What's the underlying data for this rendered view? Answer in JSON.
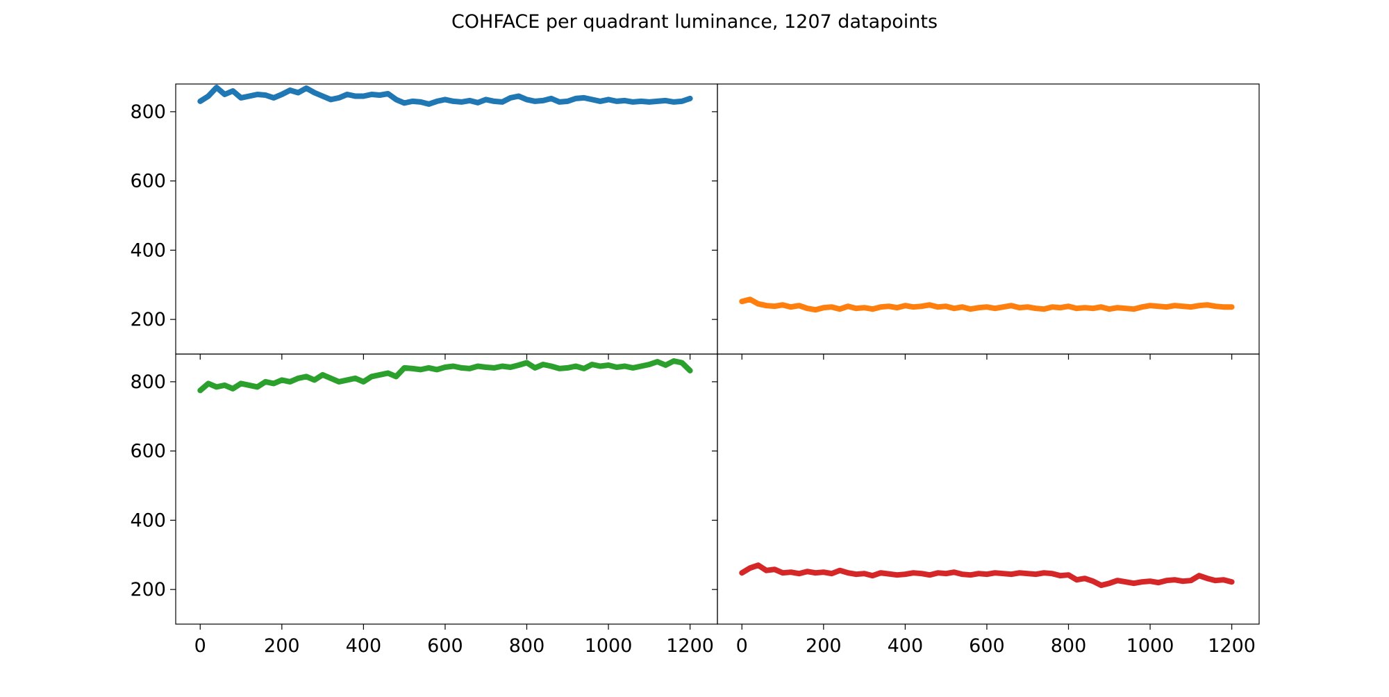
{
  "figure": {
    "title": "COHFACE per quadrant luminance, 1207 datapoints"
  },
  "chart_data": [
    {
      "type": "line",
      "panel": "top-left",
      "color": "#1f77b4",
      "xlim": [
        -60,
        1267
      ],
      "ylim": [
        100,
        880
      ],
      "xticks": [
        0,
        200,
        400,
        600,
        800,
        1000,
        1200
      ],
      "yticks": [
        200,
        400,
        600,
        800
      ],
      "show_xtick_labels": false,
      "show_ytick_labels": true,
      "x": [
        0,
        20,
        40,
        60,
        80,
        100,
        120,
        140,
        160,
        180,
        200,
        220,
        240,
        260,
        280,
        300,
        320,
        340,
        360,
        380,
        400,
        420,
        440,
        460,
        480,
        500,
        520,
        540,
        560,
        580,
        600,
        620,
        640,
        660,
        680,
        700,
        720,
        740,
        760,
        780,
        800,
        820,
        840,
        860,
        880,
        900,
        920,
        940,
        960,
        980,
        1000,
        1020,
        1040,
        1060,
        1080,
        1100,
        1120,
        1140,
        1160,
        1180,
        1200
      ],
      "values": [
        830,
        845,
        870,
        850,
        860,
        840,
        845,
        850,
        848,
        840,
        850,
        862,
        855,
        868,
        855,
        845,
        835,
        840,
        850,
        845,
        845,
        850,
        848,
        852,
        835,
        825,
        830,
        828,
        822,
        830,
        835,
        830,
        828,
        832,
        826,
        835,
        830,
        828,
        840,
        845,
        835,
        830,
        832,
        838,
        828,
        830,
        838,
        840,
        835,
        830,
        835,
        830,
        832,
        828,
        830,
        828,
        830,
        832,
        828,
        830,
        838
      ]
    },
    {
      "type": "line",
      "panel": "top-right",
      "color": "#ff7f0e",
      "xlim": [
        -60,
        1267
      ],
      "ylim": [
        100,
        880
      ],
      "xticks": [
        0,
        200,
        400,
        600,
        800,
        1000,
        1200
      ],
      "yticks": [
        200,
        400,
        600,
        800
      ],
      "show_xtick_labels": false,
      "show_ytick_labels": false,
      "x": [
        0,
        20,
        40,
        60,
        80,
        100,
        120,
        140,
        160,
        180,
        200,
        220,
        240,
        260,
        280,
        300,
        320,
        340,
        360,
        380,
        400,
        420,
        440,
        460,
        480,
        500,
        520,
        540,
        560,
        580,
        600,
        620,
        640,
        660,
        680,
        700,
        720,
        740,
        760,
        780,
        800,
        820,
        840,
        860,
        880,
        900,
        920,
        940,
        960,
        980,
        1000,
        1020,
        1040,
        1060,
        1080,
        1100,
        1120,
        1140,
        1160,
        1180,
        1200
      ],
      "values": [
        252,
        258,
        245,
        240,
        238,
        242,
        236,
        240,
        232,
        228,
        234,
        236,
        230,
        238,
        232,
        234,
        230,
        236,
        238,
        234,
        240,
        236,
        238,
        242,
        236,
        238,
        232,
        236,
        230,
        234,
        236,
        232,
        236,
        240,
        234,
        236,
        232,
        230,
        236,
        234,
        238,
        232,
        234,
        232,
        236,
        230,
        234,
        232,
        230,
        236,
        240,
        238,
        236,
        240,
        238,
        236,
        240,
        242,
        238,
        236,
        236
      ]
    },
    {
      "type": "line",
      "panel": "bottom-left",
      "color": "#2ca02c",
      "xlim": [
        -60,
        1267
      ],
      "ylim": [
        100,
        880
      ],
      "xticks": [
        0,
        200,
        400,
        600,
        800,
        1000,
        1200
      ],
      "yticks": [
        200,
        400,
        600,
        800
      ],
      "show_xtick_labels": true,
      "show_ytick_labels": true,
      "x": [
        0,
        20,
        40,
        60,
        80,
        100,
        120,
        140,
        160,
        180,
        200,
        220,
        240,
        260,
        280,
        300,
        320,
        340,
        360,
        380,
        400,
        420,
        440,
        460,
        480,
        500,
        520,
        540,
        560,
        580,
        600,
        620,
        640,
        660,
        680,
        700,
        720,
        740,
        760,
        780,
        800,
        820,
        840,
        860,
        880,
        900,
        920,
        940,
        960,
        980,
        1000,
        1020,
        1040,
        1060,
        1080,
        1100,
        1120,
        1140,
        1160,
        1180,
        1200
      ],
      "values": [
        775,
        795,
        785,
        790,
        780,
        795,
        790,
        785,
        800,
        795,
        805,
        800,
        810,
        815,
        805,
        820,
        810,
        800,
        805,
        810,
        800,
        815,
        820,
        825,
        815,
        840,
        838,
        835,
        840,
        835,
        842,
        845,
        840,
        838,
        845,
        842,
        840,
        845,
        842,
        848,
        855,
        840,
        850,
        845,
        838,
        840,
        845,
        838,
        850,
        845,
        848,
        842,
        845,
        840,
        845,
        850,
        858,
        848,
        860,
        855,
        832
      ]
    },
    {
      "type": "line",
      "panel": "bottom-right",
      "color": "#d62728",
      "xlim": [
        -60,
        1267
      ],
      "ylim": [
        100,
        880
      ],
      "xticks": [
        0,
        200,
        400,
        600,
        800,
        1000,
        1200
      ],
      "yticks": [
        200,
        400,
        600,
        800
      ],
      "show_xtick_labels": true,
      "show_ytick_labels": false,
      "x": [
        0,
        20,
        40,
        60,
        80,
        100,
        120,
        140,
        160,
        180,
        200,
        220,
        240,
        260,
        280,
        300,
        320,
        340,
        360,
        380,
        400,
        420,
        440,
        460,
        480,
        500,
        520,
        540,
        560,
        580,
        600,
        620,
        640,
        660,
        680,
        700,
        720,
        740,
        760,
        780,
        800,
        820,
        840,
        860,
        880,
        900,
        920,
        940,
        960,
        980,
        1000,
        1020,
        1040,
        1060,
        1080,
        1100,
        1120,
        1140,
        1160,
        1180,
        1200
      ],
      "values": [
        248,
        262,
        270,
        255,
        258,
        248,
        250,
        246,
        252,
        248,
        250,
        246,
        255,
        248,
        244,
        246,
        240,
        248,
        245,
        242,
        244,
        248,
        246,
        242,
        248,
        246,
        250,
        244,
        242,
        246,
        244,
        248,
        246,
        244,
        248,
        246,
        244,
        248,
        246,
        240,
        242,
        228,
        232,
        224,
        212,
        218,
        226,
        222,
        218,
        222,
        224,
        220,
        226,
        228,
        224,
        226,
        240,
        232,
        226,
        228,
        222
      ]
    }
  ]
}
